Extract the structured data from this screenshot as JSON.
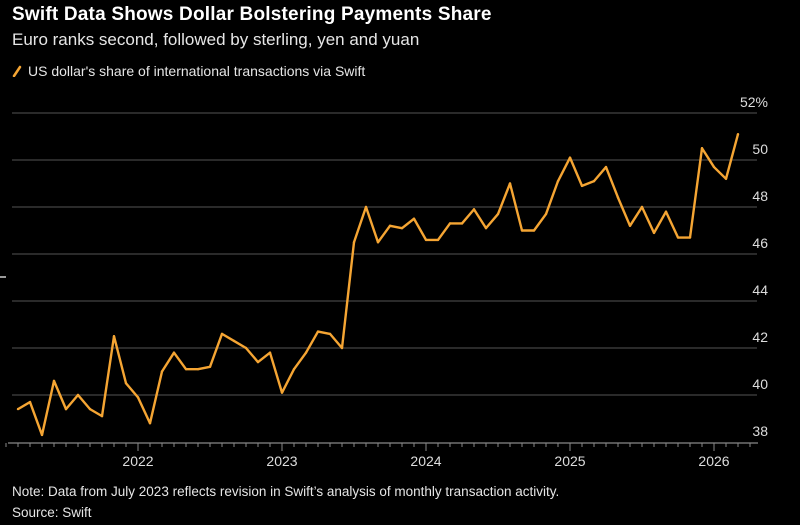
{
  "title": "Swift Data Shows Dollar Bolstering Payments Share",
  "subtitle": "Euro ranks second, followed by sterling, yen and yuan",
  "note": "Note: Data from July 2023 reflects revision in Swift’s analysis of monthly transaction activity.",
  "source": "Source: Swift",
  "colors": {
    "series": "#f5a533",
    "background": "#000000",
    "grid": "#444444"
  },
  "chart_data": {
    "type": "line",
    "title": "Swift Data Shows Dollar Bolstering Payments Share",
    "subtitle": "Euro ranks second, followed by sterling, yen and yuan",
    "legend_position": "top-left",
    "grid": true,
    "ylim": [
      38,
      52
    ],
    "yticks": [
      "38",
      "40",
      "42",
      "44",
      "46",
      "48",
      "50",
      "52%"
    ],
    "ytick_values": [
      38,
      40,
      42,
      44,
      46,
      48,
      50,
      52
    ],
    "xticks": [
      "2022",
      "2023",
      "2024",
      "2025",
      "2026"
    ],
    "y_axis_position": "right",
    "series": [
      {
        "name": "US dollar's share of international transactions via Swift",
        "x": [
          "2021-03",
          "2021-04",
          "2021-05",
          "2021-06",
          "2021-07",
          "2021-08",
          "2021-09",
          "2021-10",
          "2021-11",
          "2021-12",
          "2022-01",
          "2022-02",
          "2022-03",
          "2022-04",
          "2022-05",
          "2022-06",
          "2022-07",
          "2022-08",
          "2022-09",
          "2022-10",
          "2022-11",
          "2022-12",
          "2023-01",
          "2023-02",
          "2023-03",
          "2023-04",
          "2023-05",
          "2023-06",
          "2023-07",
          "2023-08",
          "2023-09",
          "2023-10",
          "2023-11",
          "2023-12",
          "2024-01",
          "2024-02",
          "2024-03",
          "2024-04",
          "2024-05",
          "2024-06",
          "2024-07",
          "2024-08",
          "2024-09",
          "2024-10",
          "2024-11",
          "2024-12",
          "2025-01",
          "2025-02",
          "2025-03",
          "2025-04",
          "2025-05",
          "2025-06",
          "2025-07",
          "2025-08",
          "2025-09",
          "2025-10",
          "2025-11",
          "2025-12",
          "2026-01",
          "2026-02",
          "2026-03"
        ],
        "values": [
          39.4,
          39.7,
          38.3,
          40.6,
          39.4,
          40.0,
          39.4,
          39.1,
          42.5,
          40.5,
          39.9,
          38.8,
          41.0,
          41.8,
          41.1,
          41.1,
          41.2,
          42.6,
          42.3,
          42.0,
          41.4,
          41.8,
          40.1,
          41.1,
          41.8,
          42.7,
          42.6,
          42.0,
          46.5,
          48.0,
          46.5,
          47.2,
          47.1,
          47.5,
          46.6,
          46.6,
          47.3,
          47.3,
          47.9,
          47.1,
          47.7,
          49.0,
          47.0,
          47.0,
          47.7,
          49.1,
          50.1,
          48.9,
          49.1,
          49.7,
          48.4,
          47.2,
          48.0,
          46.9,
          47.8,
          46.7,
          46.7,
          50.5,
          49.7,
          49.2,
          51.1
        ]
      }
    ]
  }
}
